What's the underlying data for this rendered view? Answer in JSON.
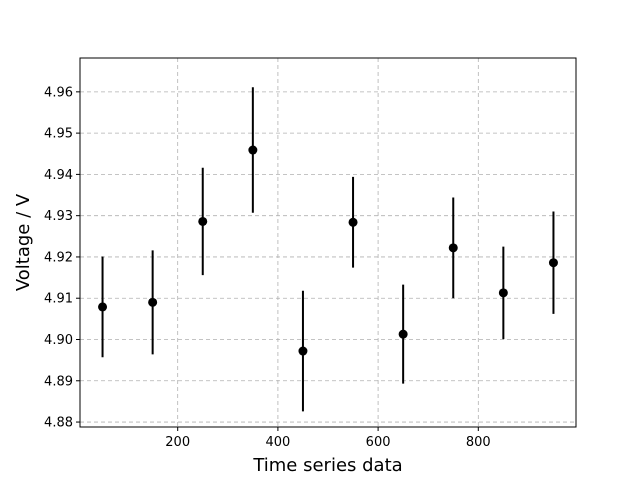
{
  "chart_data": {
    "type": "scatter",
    "title": "",
    "xlabel": "Time series data",
    "ylabel": "Voltage / V",
    "xlim": [
      5,
      995
    ],
    "ylim": [
      4.8788,
      4.9682
    ],
    "xticks": [
      200,
      400,
      600,
      800
    ],
    "xtick_labels": [
      "200",
      "400",
      "600",
      "800"
    ],
    "yticks": [
      4.88,
      4.89,
      4.9,
      4.91,
      4.92,
      4.93,
      4.94,
      4.95,
      4.96
    ],
    "ytick_labels": [
      "4.88",
      "4.89",
      "4.90",
      "4.91",
      "4.92",
      "4.93",
      "4.94",
      "4.95",
      "4.96"
    ],
    "grid": true,
    "grid_style": "dashed",
    "marker_color": "#000000",
    "grid_color": "#b0b0b0",
    "series": [
      {
        "x": [
          50,
          150,
          250,
          350,
          450,
          550,
          650,
          750,
          850,
          950
        ],
        "y": [
          4.9079,
          4.909,
          4.9286,
          4.9459,
          4.8972,
          4.9284,
          4.9013,
          4.9222,
          4.9113,
          4.9186
        ],
        "yerr": [
          0.0122,
          0.0126,
          0.013,
          0.0152,
          0.0146,
          0.011,
          0.012,
          0.0122,
          0.0112,
          0.0124
        ]
      }
    ]
  }
}
